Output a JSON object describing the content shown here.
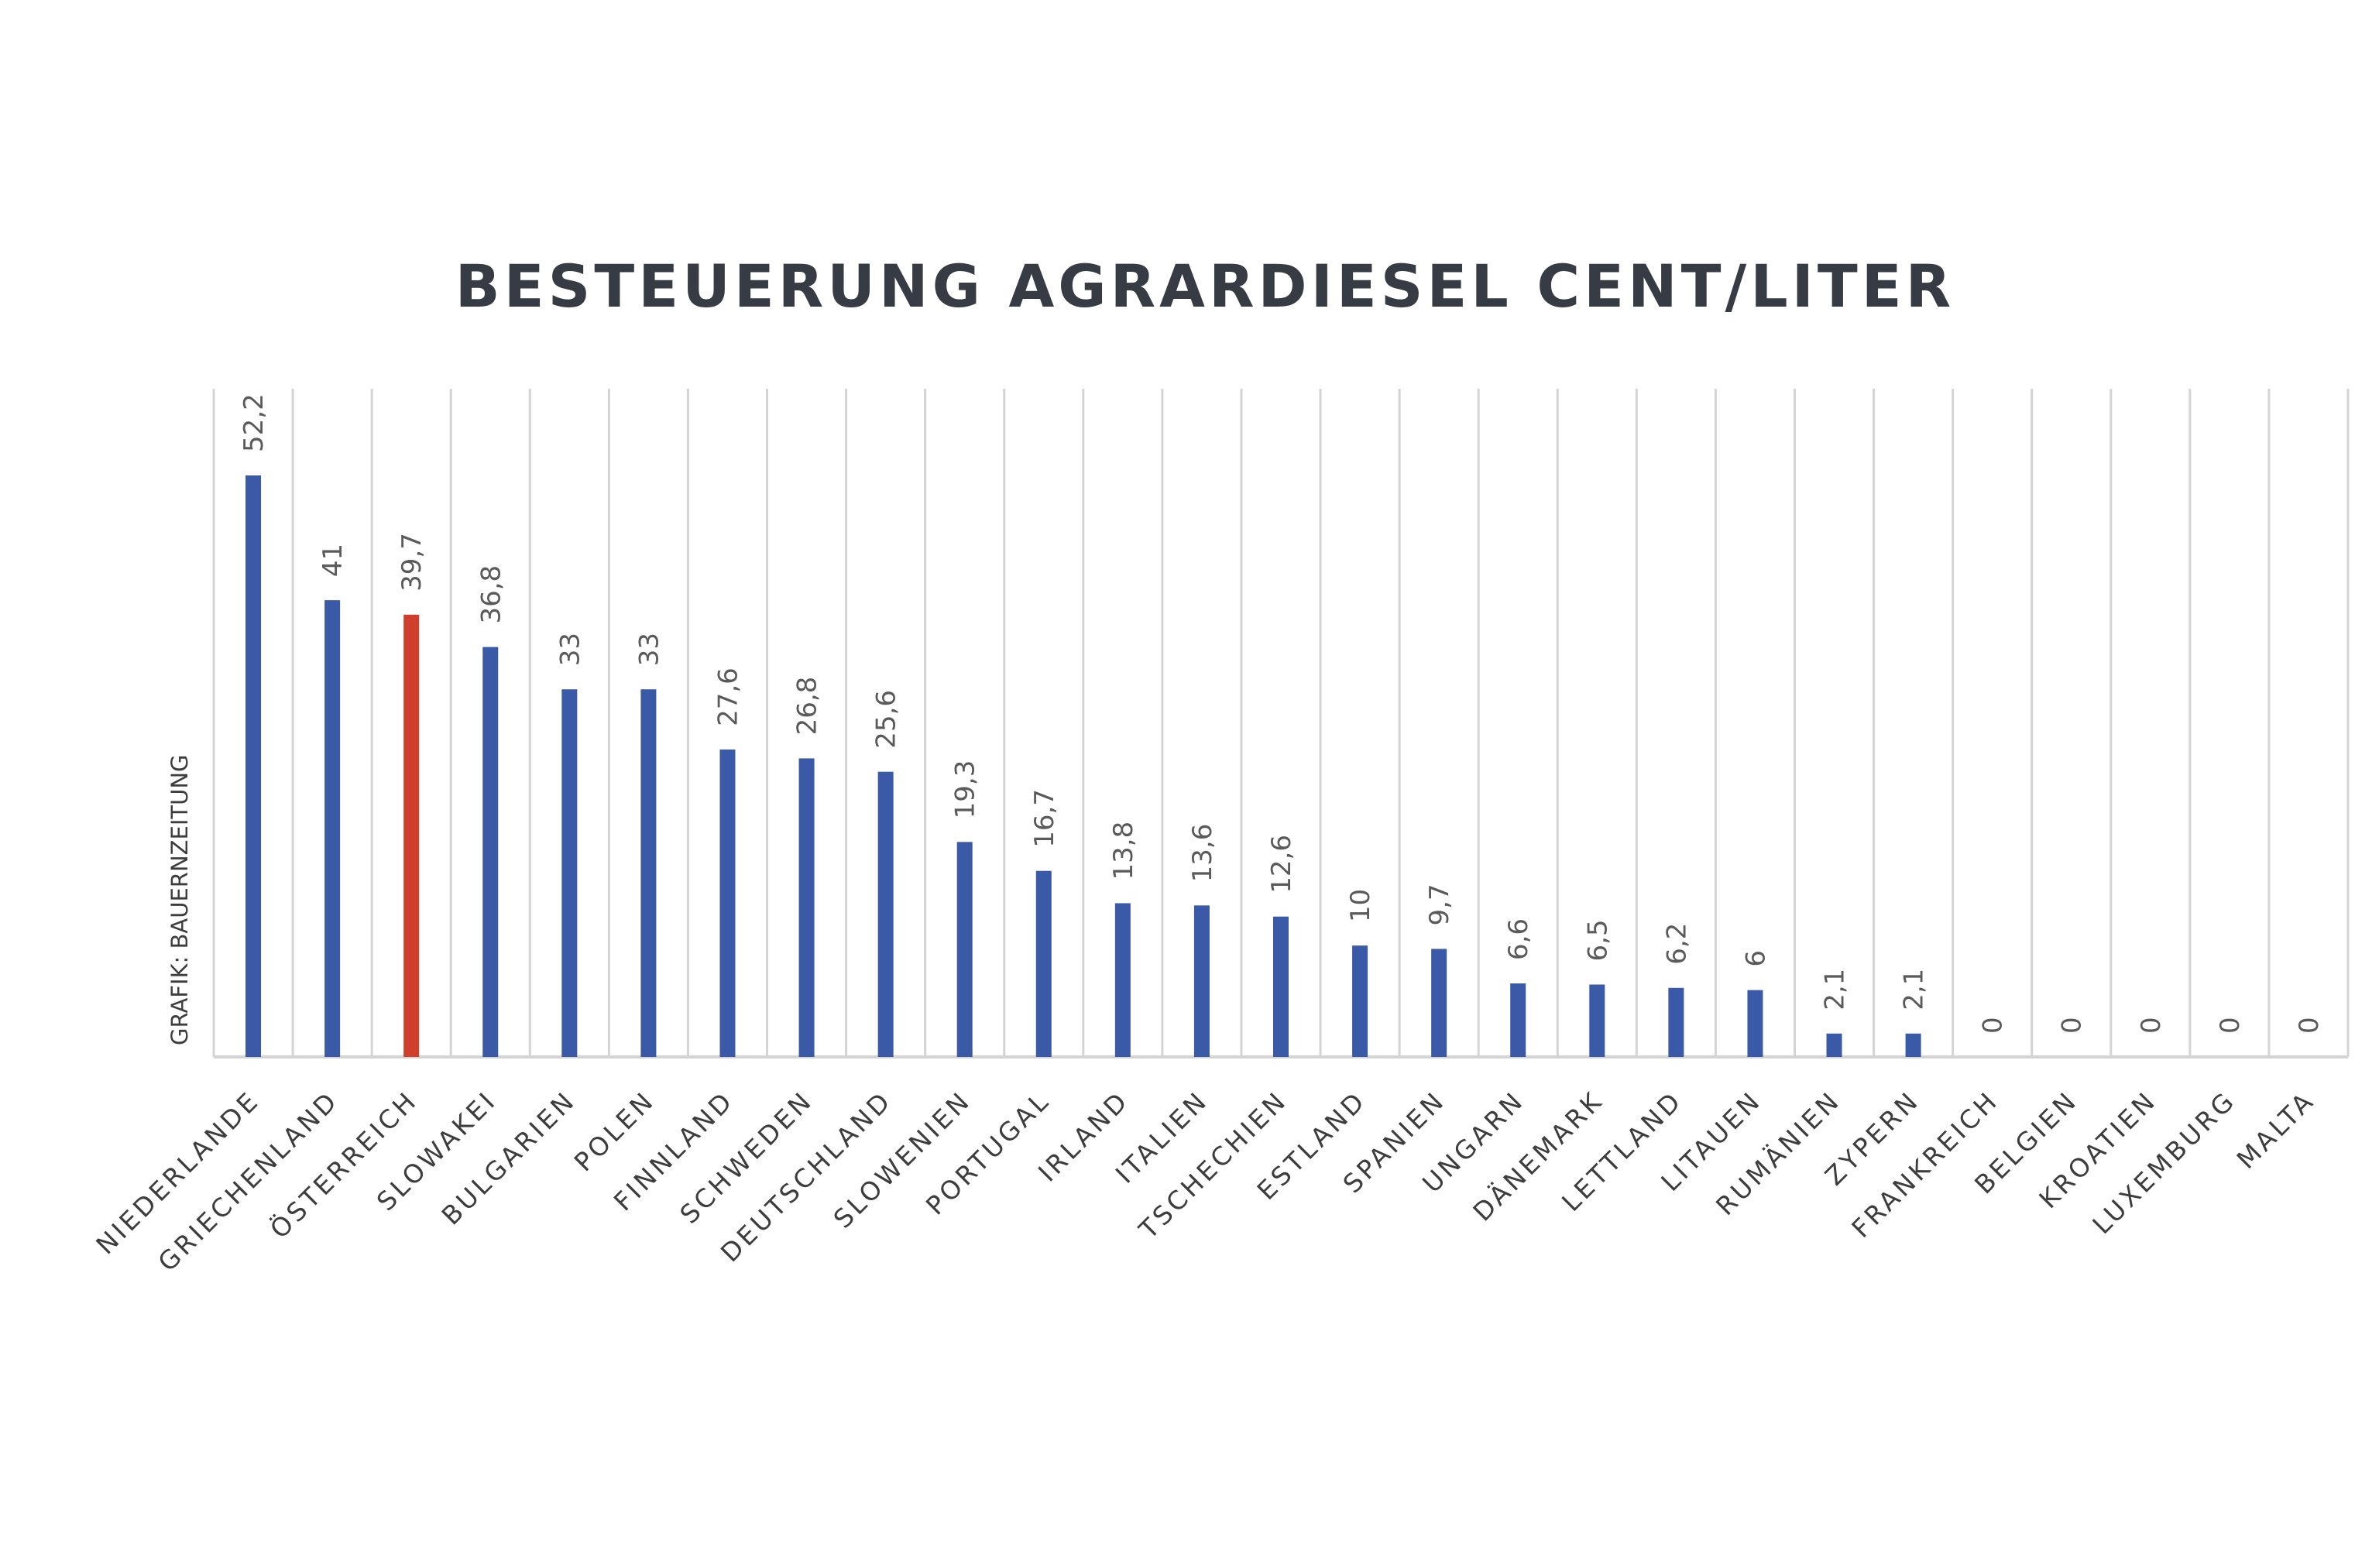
{
  "chart_data": {
    "type": "bar",
    "title": "BESTEUERUNG AGRARDIESEL CENT/LITER",
    "source": "GRAFIK: BAUERNZEITUNG",
    "xlabel": "",
    "ylabel": "",
    "ylim": [
      0,
      60
    ],
    "grid": "vertical lines between categories",
    "legend": "none",
    "categories": [
      "NIEDERLANDE",
      "GRIECHENLAND",
      "ÖSTERREICH",
      "SLOWAKEI",
      "BULGARIEN",
      "POLEN",
      "FINNLAND",
      "SCHWEDEN",
      "DEUTSCHLAND",
      "SLOWENIEN",
      "PORTUGAL",
      "IRLAND",
      "ITALIEN",
      "TSCHECHIEN",
      "ESTLAND",
      "SPANIEN",
      "UNGARN",
      "DÄNEMARK",
      "LETTLAND",
      "LITAUEN",
      "RUMÄNIEN",
      "ZYPERN",
      "FRANKREICH",
      "BELGIEN",
      "KROATIEN",
      "LUXEMBURG",
      "MALTA"
    ],
    "values": [
      52.2,
      41,
      39.7,
      36.8,
      33,
      33,
      27.6,
      26.8,
      25.6,
      19.3,
      16.7,
      13.8,
      13.6,
      12.6,
      10,
      9.7,
      6.6,
      6.5,
      6.2,
      6,
      2.1,
      2.1,
      0,
      0,
      0,
      0,
      0
    ],
    "data_labels": [
      "52,2",
      "41",
      "39,7",
      "36,8",
      "33",
      "33",
      "27,6",
      "26,8",
      "25,6",
      "19,3",
      "16,7",
      "13,8",
      "13,6",
      "12,6",
      "10",
      "9,7",
      "6,6",
      "6,5",
      "6,2",
      "6",
      "2,1",
      "2,1",
      "0",
      "0",
      "0",
      "0",
      "0"
    ],
    "highlight_category": "ÖSTERREICH",
    "colors": {
      "bar": "#3a5aa8",
      "highlight": "#cf3f2c",
      "grid": "#d4d4d4",
      "text": "#363b44"
    }
  }
}
